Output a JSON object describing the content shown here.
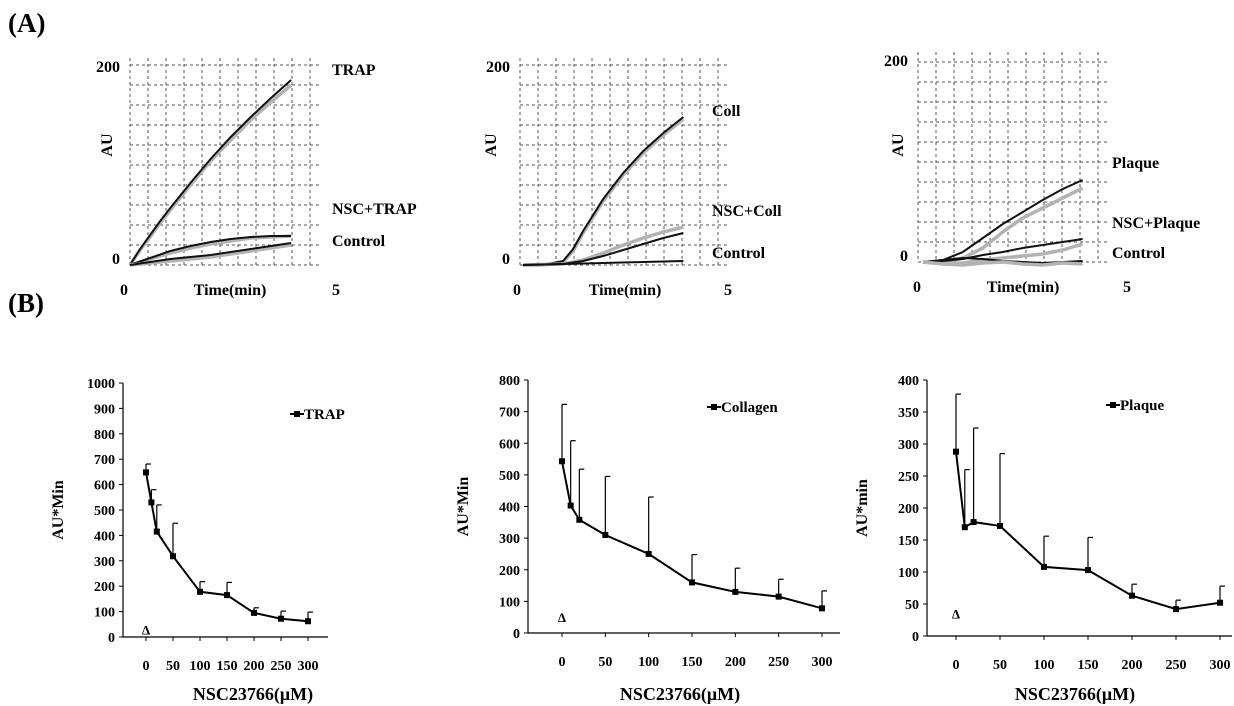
{
  "panel_labels": {
    "a": "(A)",
    "b": "(B)"
  },
  "colors": {
    "dark_trace": "#111111",
    "grey_trace": "#b3b3b3",
    "grid": "#555555"
  },
  "chart_data": [
    {
      "type": "line",
      "panel": "A1",
      "ylabel": "AU",
      "xlabel": "Time(min)",
      "xlim": [
        0,
        5
      ],
      "ylim": [
        0,
        200
      ],
      "x_ticks": [
        "0",
        "5"
      ],
      "y_ticks": [
        "0",
        "200"
      ],
      "grid": true,
      "series": [
        {
          "name": "TRAP",
          "color": "#b3b3b3",
          "x": [
            0,
            0.25,
            0.5,
            0.75,
            1,
            1.5,
            2,
            2.5,
            3,
            3.5,
            4
          ],
          "y": [
            0,
            15,
            28,
            42,
            55,
            80,
            104,
            125,
            145,
            163,
            180
          ]
        },
        {
          "name": "TRAP",
          "color": "#111111",
          "x": [
            0,
            0.25,
            0.5,
            0.75,
            1,
            1.5,
            2,
            2.5,
            3,
            3.5,
            4
          ],
          "y": [
            0,
            16,
            30,
            44,
            57,
            82,
            106,
            128,
            148,
            167,
            185
          ]
        },
        {
          "name": "NSC+TRAP",
          "color": "#b3b3b3",
          "x": [
            0,
            0.5,
            1,
            1.5,
            2,
            2.5,
            3,
            3.5,
            4
          ],
          "y": [
            0,
            6,
            12,
            17,
            21,
            24,
            27,
            28,
            29
          ]
        },
        {
          "name": "NSC+TRAP",
          "color": "#111111",
          "x": [
            0,
            0.5,
            1,
            1.5,
            2,
            2.5,
            3,
            3.5,
            4
          ],
          "y": [
            0,
            7,
            14,
            19,
            23,
            26,
            28,
            29,
            29
          ]
        },
        {
          "name": "Control",
          "color": "#b3b3b3",
          "x": [
            0,
            0.5,
            1,
            1.5,
            2,
            2.5,
            3,
            3.5,
            4
          ],
          "y": [
            0,
            2,
            4,
            6,
            8,
            11,
            14,
            17,
            20
          ]
        },
        {
          "name": "Control",
          "color": "#111111",
          "x": [
            0,
            0.5,
            1,
            1.5,
            2,
            2.5,
            3,
            3.5,
            4
          ],
          "y": [
            0,
            3,
            6,
            8,
            10,
            13,
            16,
            19,
            22
          ]
        }
      ]
    },
    {
      "type": "line",
      "panel": "A2",
      "ylabel": "AU",
      "xlabel": "Time(min)",
      "xlim": [
        0,
        5
      ],
      "ylim": [
        0,
        200
      ],
      "x_ticks": [
        "0",
        "5"
      ],
      "y_ticks": [
        "0",
        "200"
      ],
      "grid": true,
      "series": [
        {
          "name": "Coll",
          "color": "#b3b3b3",
          "x": [
            0,
            0.5,
            1,
            1.25,
            1.5,
            2,
            2.5,
            3,
            3.5,
            4
          ],
          "y": [
            0,
            0,
            3,
            14,
            32,
            64,
            90,
            112,
            130,
            146
          ]
        },
        {
          "name": "Coll",
          "color": "#111111",
          "x": [
            0,
            0.5,
            1,
            1.25,
            1.5,
            2,
            2.5,
            3,
            3.5,
            4
          ],
          "y": [
            0,
            0,
            4,
            16,
            34,
            66,
            92,
            114,
            132,
            148
          ]
        },
        {
          "name": "NSC+Coll",
          "color": "#b3b3b3",
          "x": [
            0,
            1,
            1.5,
            2,
            2.5,
            3,
            3.5,
            4
          ],
          "y": [
            0,
            1,
            5,
            12,
            20,
            27,
            33,
            38
          ]
        },
        {
          "name": "NSC+Coll",
          "color": "#111111",
          "x": [
            0,
            1,
            1.5,
            2,
            2.5,
            3,
            3.5,
            4
          ],
          "y": [
            0,
            1,
            4,
            9,
            15,
            21,
            27,
            32
          ]
        },
        {
          "name": "Control",
          "color": "#111111",
          "x": [
            0,
            1,
            2,
            3,
            4
          ],
          "y": [
            0,
            1,
            2,
            3,
            4
          ]
        }
      ]
    },
    {
      "type": "line",
      "panel": "A3",
      "ylabel": "AU",
      "xlabel": "Time(min)",
      "xlim": [
        0,
        5
      ],
      "ylim": [
        0,
        200
      ],
      "x_ticks": [
        "0",
        "5"
      ],
      "y_ticks": [
        "0",
        "200"
      ],
      "grid": true,
      "series": [
        {
          "name": "Plaque",
          "color": "#111111",
          "x": [
            0,
            0.5,
            1,
            1.5,
            2,
            2.5,
            3,
            3.5,
            4
          ],
          "y": [
            0,
            2,
            10,
            24,
            38,
            50,
            62,
            73,
            82
          ]
        },
        {
          "name": "Plaque",
          "color": "#b3b3b3",
          "x": [
            0,
            0.5,
            1,
            1.5,
            2,
            2.5,
            3,
            3.5,
            4
          ],
          "y": [
            0,
            0,
            4,
            14,
            30,
            44,
            54,
            64,
            74
          ]
        },
        {
          "name": "NSC+Plaque",
          "color": "#111111",
          "x": [
            0,
            0.5,
            1,
            1.5,
            2,
            2.5,
            3,
            3.5,
            4
          ],
          "y": [
            0,
            1,
            3,
            7,
            10,
            14,
            17,
            20,
            23
          ]
        },
        {
          "name": "NSC+Plaque",
          "color": "#b3b3b3",
          "x": [
            0,
            0.5,
            1,
            1.5,
            2,
            2.5,
            3,
            3.5,
            4
          ],
          "y": [
            0,
            -2,
            -1,
            2,
            4,
            6,
            8,
            12,
            18
          ]
        },
        {
          "name": "Control",
          "color": "#111111",
          "x": [
            0,
            0.5,
            1,
            1.5,
            2,
            2.5,
            3,
            3.5,
            4
          ],
          "y": [
            0,
            2,
            4,
            3,
            1,
            0,
            -1,
            0,
            1
          ]
        },
        {
          "name": "Control",
          "color": "#b3b3b3",
          "x": [
            0,
            0.5,
            1,
            1.5,
            2,
            2.5,
            3,
            3.5,
            4
          ],
          "y": [
            0,
            -2,
            -3,
            -1,
            0,
            -2,
            -3,
            -1,
            -2
          ]
        }
      ]
    },
    {
      "type": "line",
      "panel": "B1",
      "xlabel": "NSC23766(μM)",
      "ylabel": "AU*Min",
      "xlim": [
        0,
        300
      ],
      "ylim": [
        0,
        1000
      ],
      "x_ticks": [
        "0",
        "50",
        "100",
        "150",
        "200",
        "250",
        "300"
      ],
      "y_ticks": [
        "0",
        "100",
        "200",
        "300",
        "400",
        "500",
        "600",
        "700",
        "800",
        "900",
        "1000"
      ],
      "series": [
        {
          "name": "TRAP",
          "x": [
            0,
            10,
            20,
            50,
            100,
            150,
            200,
            250,
            300
          ],
          "y": [
            648,
            530,
            415,
            318,
            178,
            165,
            95,
            72,
            62
          ],
          "err": [
            33,
            50,
            105,
            130,
            40,
            50,
            20,
            30,
            36
          ]
        }
      ],
      "control_marker": {
        "symbol": "Δ",
        "x": 0,
        "y": 30
      }
    },
    {
      "type": "line",
      "panel": "B2",
      "xlabel": "NSC23766(μM)",
      "ylabel": "AU*Min",
      "xlim": [
        0,
        300
      ],
      "ylim": [
        0,
        800
      ],
      "x_ticks": [
        "0",
        "50",
        "100",
        "150",
        "200",
        "250",
        "300"
      ],
      "y_ticks": [
        "0",
        "100",
        "200",
        "300",
        "400",
        "500",
        "600",
        "700",
        "800"
      ],
      "series": [
        {
          "name": "Collagen",
          "x": [
            0,
            10,
            20,
            50,
            100,
            150,
            200,
            250,
            300
          ],
          "y": [
            543,
            403,
            358,
            310,
            250,
            160,
            130,
            115,
            78
          ],
          "err": [
            180,
            205,
            160,
            185,
            180,
            88,
            75,
            55,
            55
          ]
        }
      ],
      "control_marker": {
        "symbol": "Δ",
        "x": 0,
        "y": 50
      }
    },
    {
      "type": "line",
      "panel": "B3",
      "xlabel": "NSC23766(μM)",
      "ylabel": "AU*min",
      "xlim": [
        0,
        300
      ],
      "ylim": [
        0,
        400
      ],
      "x_ticks": [
        "0",
        "50",
        "100",
        "150",
        "200",
        "250",
        "300"
      ],
      "y_ticks": [
        "0",
        "50",
        "100",
        "150",
        "200",
        "250",
        "300",
        "350",
        "400"
      ],
      "series": [
        {
          "name": "Plaque",
          "x": [
            0,
            10,
            20,
            50,
            100,
            150,
            200,
            250,
            300
          ],
          "y": [
            288,
            170,
            178,
            172,
            108,
            103,
            63,
            42,
            52
          ],
          "err": [
            90,
            90,
            147,
            113,
            48,
            51,
            18,
            14,
            26
          ]
        }
      ],
      "control_marker": {
        "symbol": "Δ",
        "x": 0,
        "y": 35
      }
    }
  ]
}
